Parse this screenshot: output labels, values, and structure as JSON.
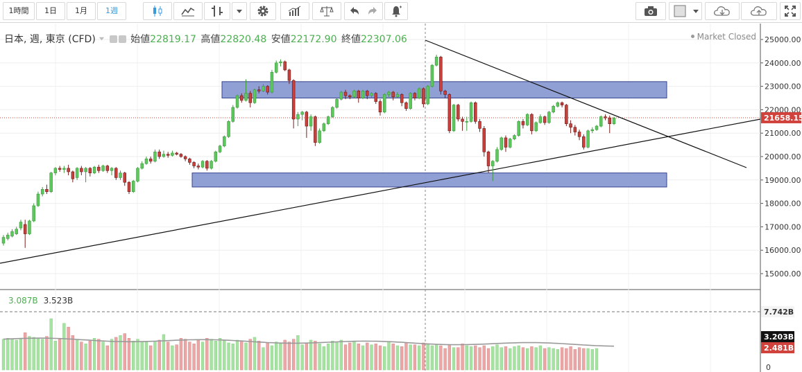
{
  "toolbar": {
    "intervals": [
      "1時間",
      "1日",
      "1月",
      "1週"
    ],
    "active_interval": "1週",
    "icons": [
      "candlestick-icon",
      "line-chart-icon",
      "indicator-icon",
      "chevron-down-icon",
      "settings-gear-icon",
      "studies-bars-icon",
      "compare-scale-icon",
      "undo-icon",
      "redo-icon",
      "alert-bell-icon",
      "camera-icon",
      "color-square-icon",
      "cloud-download-icon",
      "cloud-upload-icon",
      "fullscreen-icon"
    ]
  },
  "legend": {
    "symbol": "日本, 週, 東京 (CFD)",
    "open_label": "始値",
    "open": "22819.17",
    "high_label": "高値",
    "high": "22820.48",
    "low_label": "安値",
    "low": "22172.90",
    "close_label": "終値",
    "close": "22307.06"
  },
  "market_status": "Market Closed",
  "colors": {
    "up": "#5ec75e",
    "down": "#c9413c",
    "zone": "#8c9bd2",
    "vol_up": "#a6e2a2",
    "vol_down": "#eba6a6",
    "price_tag": "#d0423b"
  },
  "price_axis": [
    "25000.00",
    "24000.00",
    "23000.00",
    "22000.00",
    "21000.00",
    "20000.00",
    "19000.00",
    "18000.00",
    "17000.00",
    "16000.00",
    "15000.00"
  ],
  "last_price": "21658.15",
  "volume_axis": {
    "max": "7.742B",
    "ma": "3.203B",
    "last": "2.481B",
    "zero": "0"
  },
  "volume_legend": {
    "value1": "3.087B",
    "value2": "3.523B"
  },
  "chart_data": {
    "type": "candlestick",
    "price_range": [
      14600,
      25300
    ],
    "zones": [
      {
        "low": 22500,
        "high": 23200
      },
      {
        "low": 18700,
        "high": 19300
      }
    ],
    "last_price": 21658.15,
    "candles": [
      [
        16300,
        16550,
        16200,
        16650
      ],
      [
        16500,
        16650,
        16420,
        16750
      ],
      [
        16600,
        16800,
        16550,
        16900
      ],
      [
        16700,
        16900,
        16650,
        17000
      ],
      [
        16950,
        17200,
        16850,
        17300
      ],
      [
        17100,
        16700,
        16100,
        17300
      ],
      [
        16700,
        17250,
        16650,
        17300
      ],
      [
        17250,
        17900,
        17200,
        18000
      ],
      [
        17900,
        18400,
        17850,
        18500
      ],
      [
        18400,
        18600,
        18300,
        18700
      ],
      [
        18600,
        18500,
        18400,
        18800
      ],
      [
        18500,
        19300,
        18450,
        19350
      ],
      [
        19300,
        19500,
        19200,
        19550
      ],
      [
        19500,
        19450,
        19350,
        19600
      ],
      [
        19450,
        19500,
        19300,
        19600
      ],
      [
        19500,
        19350,
        19200,
        19650
      ],
      [
        19350,
        19050,
        18900,
        19400
      ],
      [
        19100,
        19500,
        19000,
        19550
      ],
      [
        19500,
        19350,
        19200,
        19600
      ],
      [
        19350,
        19500,
        18900,
        19550
      ],
      [
        19500,
        19300,
        19150,
        19550
      ],
      [
        19300,
        19550,
        19250,
        19600
      ],
      [
        19550,
        19400,
        19300,
        19650
      ],
      [
        19400,
        19600,
        19350,
        19650
      ],
      [
        19600,
        19400,
        19300,
        19650
      ],
      [
        19400,
        19500,
        19200,
        19550
      ],
      [
        19500,
        19100,
        19000,
        19550
      ],
      [
        19100,
        19300,
        19000,
        19400
      ],
      [
        19300,
        18900,
        18750,
        19350
      ],
      [
        18900,
        18500,
        18400,
        18950
      ],
      [
        18500,
        18950,
        18450,
        19000
      ],
      [
        18950,
        19500,
        18900,
        19550
      ],
      [
        19500,
        19700,
        19450,
        19800
      ],
      [
        19700,
        19900,
        19650,
        20000
      ],
      [
        19900,
        19800,
        19700,
        20000
      ],
      [
        19800,
        20200,
        19750,
        20300
      ],
      [
        20200,
        20000,
        19900,
        20300
      ],
      [
        20000,
        20100,
        19950,
        20250
      ],
      [
        20100,
        20050,
        19950,
        20200
      ],
      [
        20050,
        20150,
        20000,
        20250
      ],
      [
        20150,
        20100,
        20050,
        20200
      ],
      [
        20100,
        20000,
        19950,
        20150
      ],
      [
        20000,
        19900,
        19800,
        20050
      ],
      [
        19900,
        19750,
        19650,
        19950
      ],
      [
        19750,
        19600,
        19500,
        19800
      ],
      [
        19600,
        19550,
        19450,
        19700
      ],
      [
        19550,
        19800,
        19500,
        19850
      ],
      [
        19800,
        19500,
        19400,
        19850
      ],
      [
        19500,
        19800,
        19450,
        19850
      ],
      [
        19800,
        20200,
        19750,
        20250
      ],
      [
        20200,
        20450,
        20150,
        20500
      ],
      [
        20450,
        20850,
        20400,
        20900
      ],
      [
        20850,
        21500,
        20800,
        21550
      ],
      [
        21500,
        22100,
        21450,
        22200
      ],
      [
        22100,
        22600,
        22050,
        22650
      ],
      [
        22600,
        22400,
        22300,
        22700
      ],
      [
        22400,
        22700,
        22350,
        23300
      ],
      [
        22700,
        22300,
        22100,
        22800
      ],
      [
        22300,
        22850,
        22250,
        22900
      ],
      [
        22850,
        22800,
        22700,
        23000
      ],
      [
        22800,
        23000,
        22750,
        23100
      ],
      [
        23000,
        22750,
        22650,
        23050
      ],
      [
        22750,
        23600,
        22700,
        23700
      ],
      [
        23600,
        24000,
        23550,
        24100
      ],
      [
        24000,
        24050,
        23850,
        24150
      ],
      [
        24050,
        23700,
        23650,
        24100
      ],
      [
        23700,
        23250,
        23100,
        23750
      ],
      [
        23250,
        21600,
        21200,
        23300
      ],
      [
        21600,
        21800,
        21300,
        21900
      ],
      [
        21800,
        21900,
        21550,
        21950
      ],
      [
        21900,
        21300,
        20800,
        21950
      ],
      [
        21300,
        21700,
        21100,
        21800
      ],
      [
        21700,
        20600,
        20450,
        21750
      ],
      [
        20600,
        21100,
        20550,
        21200
      ],
      [
        21100,
        21400,
        21050,
        21450
      ],
      [
        21400,
        21700,
        21350,
        21750
      ],
      [
        21700,
        22100,
        21650,
        22150
      ],
      [
        22100,
        22450,
        22050,
        22500
      ],
      [
        22450,
        22750,
        22400,
        22800
      ],
      [
        22750,
        22600,
        22450,
        22850
      ],
      [
        22600,
        22550,
        22450,
        22650
      ],
      [
        22550,
        22800,
        22500,
        22850
      ],
      [
        22800,
        22500,
        22300,
        22850
      ],
      [
        22500,
        22800,
        22450,
        22850
      ],
      [
        22800,
        22600,
        22450,
        22850
      ],
      [
        22600,
        22700,
        22500,
        22750
      ],
      [
        22700,
        22350,
        22250,
        22750
      ],
      [
        22350,
        21900,
        21750,
        22450
      ],
      [
        21900,
        22650,
        21850,
        22700
      ],
      [
        22650,
        22750,
        22550,
        22800
      ],
      [
        22750,
        22550,
        22400,
        22800
      ],
      [
        22550,
        22650,
        22500,
        22750
      ],
      [
        22650,
        22300,
        22150,
        22700
      ],
      [
        22300,
        22050,
        21950,
        22350
      ],
      [
        22050,
        22700,
        22000,
        22750
      ],
      [
        22700,
        22500,
        22400,
        22750
      ],
      [
        22500,
        22900,
        22450,
        22950
      ],
      [
        22900,
        22250,
        22100,
        22950
      ],
      [
        22250,
        23000,
        22200,
        23050
      ],
      [
        23000,
        23900,
        22950,
        23950
      ],
      [
        23900,
        24250,
        23850,
        24350
      ],
      [
        24250,
        22800,
        22650,
        24300
      ],
      [
        22800,
        22650,
        22500,
        22850
      ],
      [
        22650,
        21100,
        21000,
        22700
      ],
      [
        21100,
        22200,
        21050,
        22250
      ],
      [
        22200,
        21600,
        21500,
        22250
      ],
      [
        21600,
        21500,
        21100,
        21700
      ],
      [
        21500,
        21500,
        21100,
        21700
      ],
      [
        21500,
        22300,
        21450,
        22350
      ],
      [
        22300,
        21500,
        21400,
        22350
      ],
      [
        21500,
        21200,
        21050,
        21600
      ],
      [
        21200,
        20200,
        20000,
        21300
      ],
      [
        20200,
        19600,
        19300,
        20250
      ],
      [
        19600,
        19800,
        18950,
        19850
      ],
      [
        19800,
        20300,
        19750,
        20400
      ],
      [
        20300,
        20800,
        20250,
        20850
      ],
      [
        20800,
        20400,
        20200,
        20900
      ],
      [
        20400,
        20750,
        20350,
        20800
      ],
      [
        20750,
        20900,
        20700,
        20950
      ],
      [
        20900,
        21500,
        20850,
        21550
      ],
      [
        21500,
        21350,
        21200,
        21600
      ],
      [
        21350,
        21800,
        21300,
        21850
      ],
      [
        21800,
        21100,
        20950,
        21850
      ],
      [
        21100,
        21450,
        21050,
        21500
      ],
      [
        21450,
        21700,
        21400,
        21800
      ],
      [
        21700,
        21450,
        21350,
        21750
      ],
      [
        21450,
        21900,
        21400,
        21950
      ],
      [
        21900,
        22150,
        21850,
        22200
      ],
      [
        22150,
        22300,
        22100,
        22350
      ],
      [
        22300,
        22200,
        22100,
        22350
      ],
      [
        22200,
        21400,
        21300,
        22250
      ],
      [
        21400,
        21250,
        21000,
        21550
      ],
      [
        21250,
        21050,
        20900,
        21350
      ],
      [
        21050,
        20850,
        20700,
        21150
      ],
      [
        20850,
        20400,
        20300,
        20950
      ],
      [
        20400,
        21100,
        20350,
        21150
      ],
      [
        21100,
        21150,
        21000,
        21250
      ],
      [
        21150,
        21300,
        21100,
        21350
      ],
      [
        21300,
        21700,
        21250,
        21750
      ],
      [
        21700,
        21650,
        21550,
        21800
      ],
      [
        21650,
        21400,
        21000,
        21750
      ],
      [
        21400,
        21650,
        21350,
        21700
      ]
    ],
    "volume": [
      3.3,
      3.4,
      3.3,
      3.2,
      3.3,
      4.0,
      3.6,
      3.5,
      3.4,
      3.3,
      3.6,
      5.5,
      3.1,
      3.3,
      5.0,
      4.6,
      3.7,
      3.2,
      3.0,
      2.8,
      3.1,
      3.4,
      3.3,
      3.0,
      2.6,
      3.3,
      3.5,
      3.7,
      3.9,
      3.4,
      3.1,
      3.3,
      3.0,
      3.0,
      2.6,
      3.1,
      3.2,
      3.8,
      3.0,
      2.6,
      2.7,
      3.4,
      3.3,
      3.0,
      2.8,
      3.2,
      3.0,
      3.4,
      3.3,
      3.1,
      3.4,
      3.2,
      2.9,
      2.8,
      3.2,
      3.1,
      2.9,
      3.3,
      3.5,
      3.1,
      2.4,
      2.9,
      2.6,
      3.0,
      2.8,
      3.2,
      3.0,
      3.3,
      3.7,
      2.7,
      2.9,
      3.2,
      3.1,
      2.8,
      2.5,
      2.8,
      3.1,
      3.0,
      3.2,
      2.7,
      2.9,
      3.0,
      2.8,
      2.6,
      2.9,
      2.7,
      2.8,
      2.6,
      2.5,
      3.0,
      2.8,
      2.6,
      2.5,
      2.9,
      2.7,
      2.7,
      2.6,
      2.9,
      2.8,
      2.6,
      2.7,
      2.6,
      2.3,
      2.7,
      2.4,
      2.4,
      2.8,
      2.6,
      2.5,
      2.6,
      2.4,
      2.6,
      2.3,
      2.5,
      2.7,
      2.4,
      2.5,
      2.3,
      2.5,
      2.6,
      2.4,
      2.3,
      2.5,
      2.4,
      2.6,
      2.3,
      2.4,
      2.3,
      2.2,
      2.4,
      2.3,
      2.5,
      2.2,
      2.4,
      2.3,
      2.3,
      2.2,
      2.3
    ],
    "volume_range": [
      0,
      8.4
    ],
    "volume_ma_start": 3.3,
    "volume_ma_end": 2.7
  }
}
